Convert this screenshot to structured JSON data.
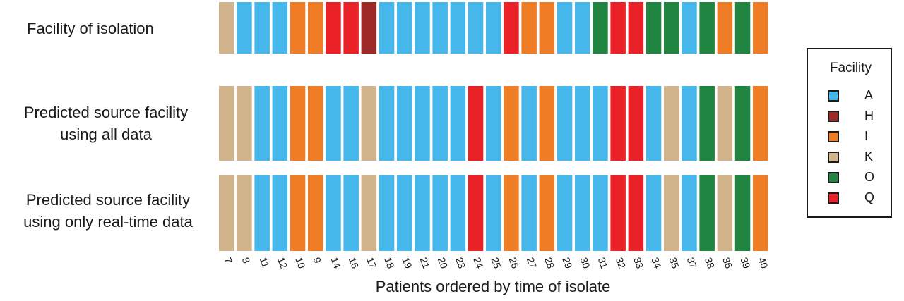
{
  "chart_data": {
    "type": "heatmap",
    "title": "",
    "xlabel": "Patients ordered by time of isolate",
    "ylabel": "",
    "categories": [
      "7",
      "8",
      "11",
      "12",
      "10",
      "9",
      "14",
      "16",
      "17",
      "18",
      "19",
      "21",
      "20",
      "23",
      "24",
      "25",
      "26",
      "27",
      "28",
      "29",
      "30",
      "31",
      "32",
      "33",
      "34",
      "35",
      "37",
      "38",
      "36",
      "39",
      "40"
    ],
    "rows": [
      {
        "label": "Facility of isolation",
        "values": [
          "K",
          "A",
          "A",
          "A",
          "I",
          "I",
          "Q",
          "Q",
          "H",
          "A",
          "A",
          "A",
          "A",
          "A",
          "A",
          "A",
          "Q",
          "I",
          "I",
          "A",
          "A",
          "O",
          "Q",
          "Q",
          "O",
          "O",
          "A",
          "O",
          "I",
          "O",
          "I"
        ]
      },
      {
        "label": "Predicted source facility using all data",
        "values": [
          "K",
          "K",
          "A",
          "A",
          "I",
          "I",
          "A",
          "A",
          "K",
          "A",
          "A",
          "A",
          "A",
          "A",
          "Q",
          "A",
          "I",
          "A",
          "I",
          "A",
          "A",
          "A",
          "Q",
          "Q",
          "A",
          "K",
          "A",
          "O",
          "K",
          "O",
          "I"
        ]
      },
      {
        "label": "Predicted source facility using only real-time data",
        "values": [
          "K",
          "K",
          "A",
          "A",
          "I",
          "I",
          "A",
          "A",
          "K",
          "A",
          "A",
          "A",
          "A",
          "A",
          "Q",
          "A",
          "I",
          "A",
          "I",
          "A",
          "A",
          "A",
          "Q",
          "Q",
          "A",
          "K",
          "A",
          "O",
          "K",
          "O",
          "I"
        ]
      }
    ],
    "legend": {
      "title": "Facility",
      "position": "right",
      "items": [
        {
          "label": "A",
          "color": "#45b7ea"
        },
        {
          "label": "H",
          "color": "#9e2a27"
        },
        {
          "label": "I",
          "color": "#ee7d26"
        },
        {
          "label": "K",
          "color": "#d1b38c"
        },
        {
          "label": "O",
          "color": "#1f8541"
        },
        {
          "label": "Q",
          "color": "#ea2227"
        }
      ]
    },
    "grid": false
  },
  "labels": {
    "row_0": "Facility of isolation",
    "row_1_line_1": "Predicted source facility",
    "row_1_line_2": "using all data",
    "row_2_line_1": "Predicted source facility",
    "row_2_line_2": "using only real-time data"
  }
}
